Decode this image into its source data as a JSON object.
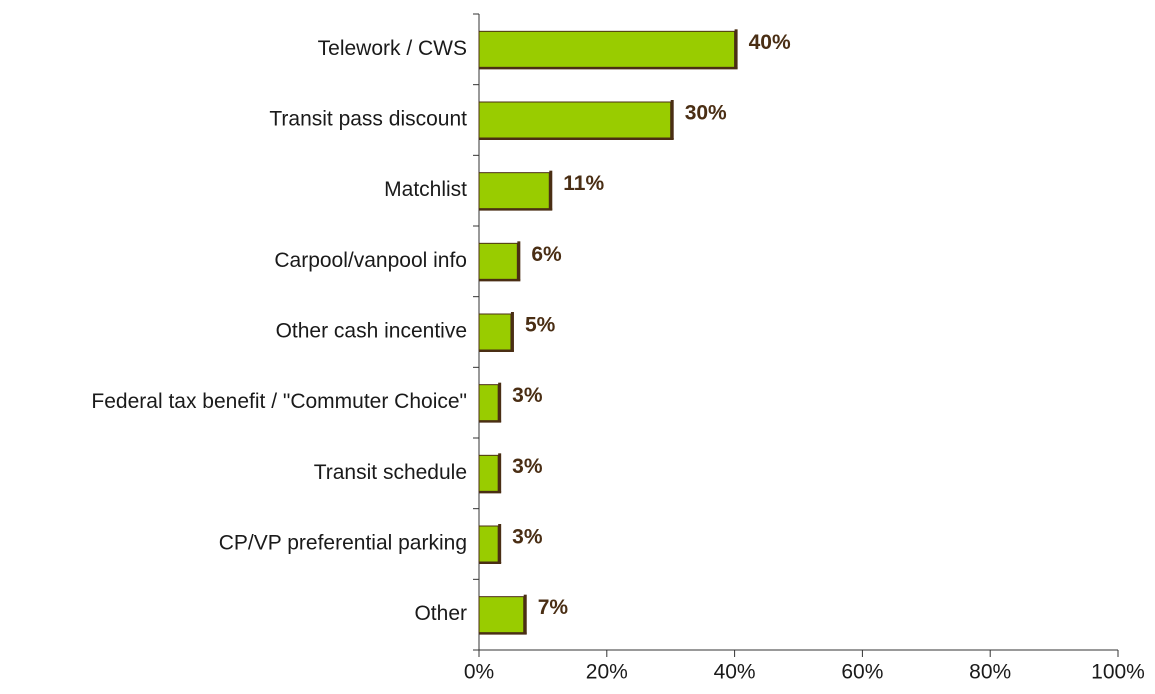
{
  "chart_data": {
    "type": "bar",
    "orientation": "horizontal",
    "categories": [
      "Telework / CWS",
      "Transit pass discount",
      "Matchlist",
      "Carpool/vanpool info",
      "Other cash incentive",
      "Federal tax benefit / \"Commuter Choice\"",
      "Transit schedule",
      "CP/VP preferential parking",
      "Other"
    ],
    "values": [
      40,
      30,
      11,
      6,
      5,
      3,
      3,
      3,
      7
    ],
    "value_labels": [
      "40%",
      "30%",
      "11%",
      "6%",
      "5%",
      "3%",
      "3%",
      "3%",
      "7%"
    ],
    "color": "#99cc00",
    "xlim": [
      0,
      100
    ],
    "xticks": [
      {
        "value": 0,
        "label": "0%"
      },
      {
        "value": 20,
        "label": "20%"
      },
      {
        "value": 40,
        "label": "40%"
      },
      {
        "value": 60,
        "label": "60%"
      },
      {
        "value": 80,
        "label": "80%"
      },
      {
        "value": 100,
        "label": "100%"
      }
    ],
    "grid": false
  }
}
